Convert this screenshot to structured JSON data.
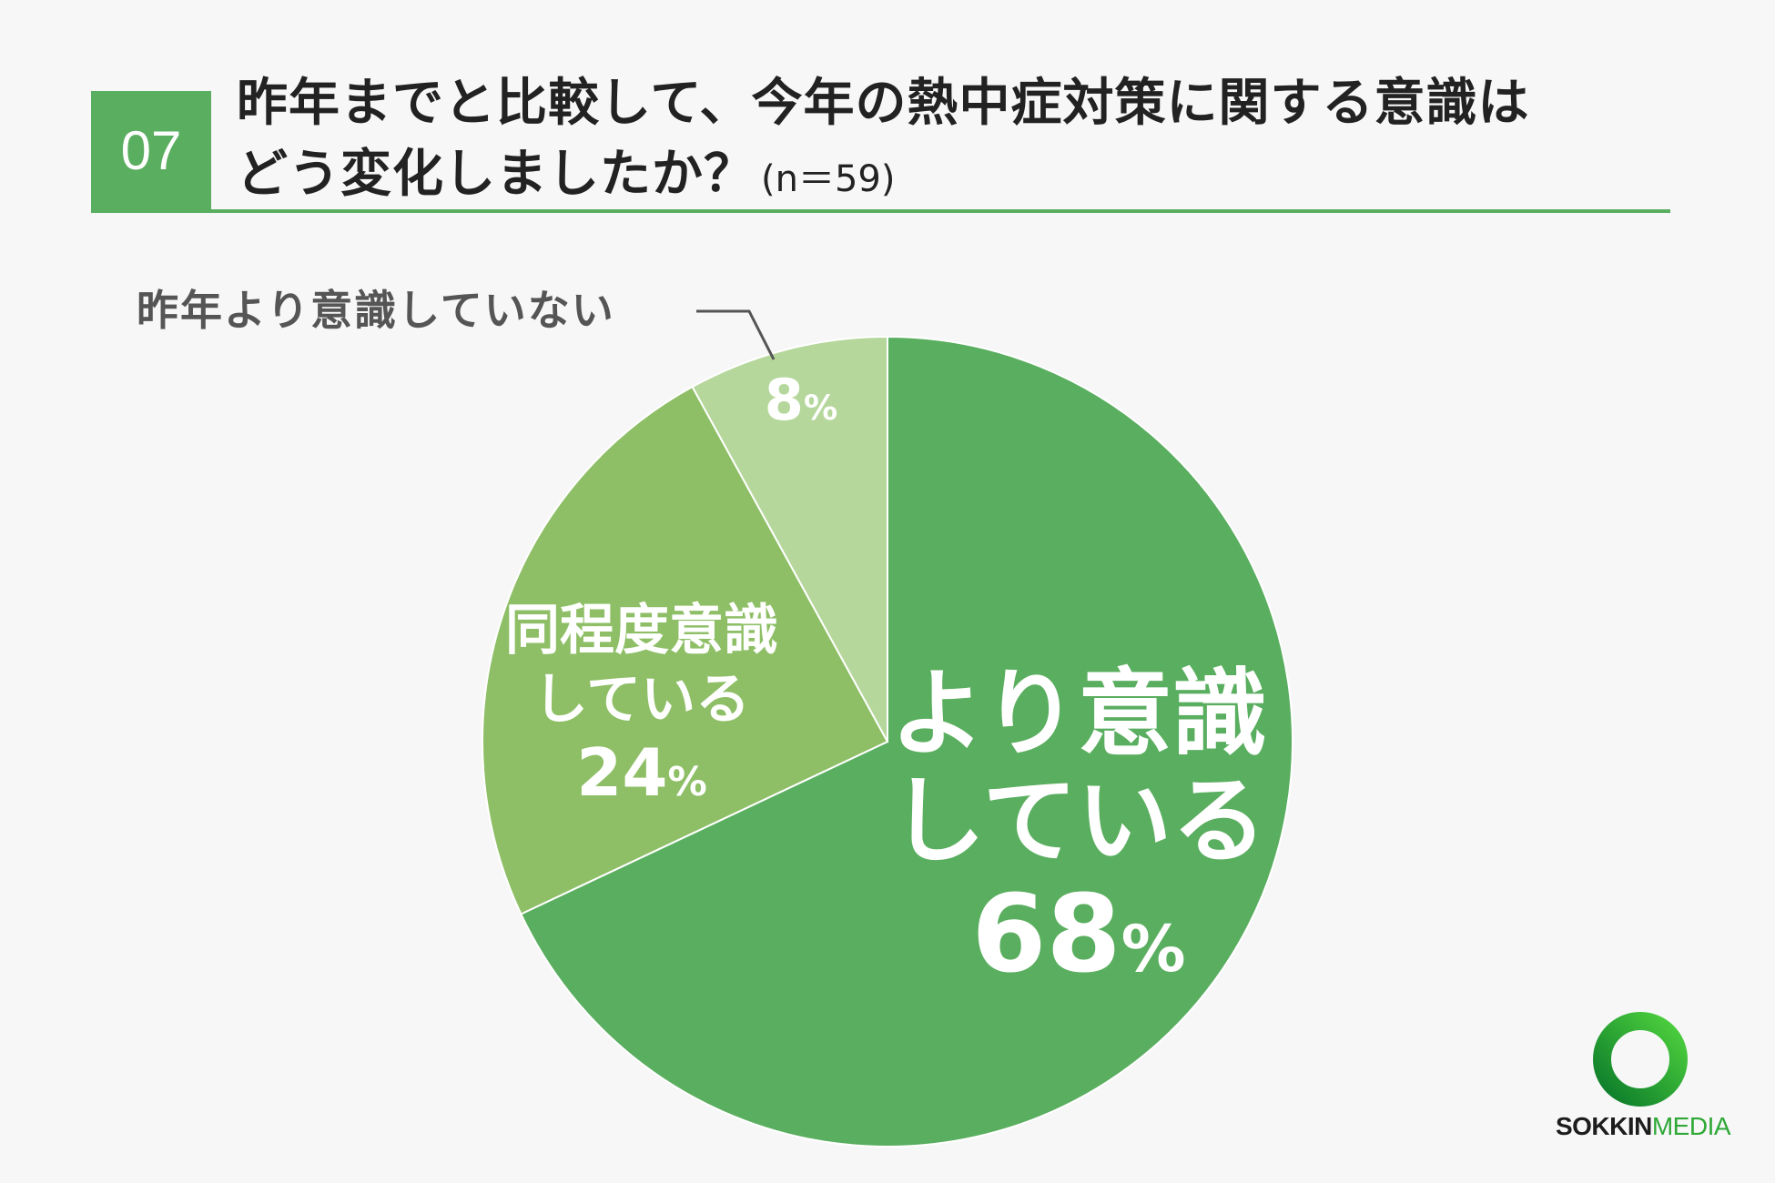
{
  "header": {
    "question_number": "07",
    "title_line1": "昨年までと比較して、今年の熱中症対策に関する意識は",
    "title_line2": "どう変化しましたか？",
    "sample_size": "(n＝59)"
  },
  "chart_data": {
    "type": "pie",
    "title": "",
    "start_angle_deg": 0,
    "direction": "clockwise",
    "slices": [
      {
        "label_line1": "より意識",
        "label_line2": "している",
        "value": 68,
        "value_label": "68",
        "color": "#5aae5f"
      },
      {
        "label_line1": "同程度意識",
        "label_line2": "している",
        "value": 24,
        "value_label": "24",
        "color": "#8ebf66"
      },
      {
        "label": "昨年より意識していない",
        "value": 8,
        "value_label": "8",
        "color": "#b5d79c"
      }
    ],
    "percent_sign": "%",
    "separator_color": "#ffffff",
    "leader_color": "#555555"
  },
  "logo": {
    "text_bold": "SOKKIN",
    "text_light": "MEDIA",
    "ring_color_dark": "#0b7a2a",
    "ring_color_light": "#4fd23e"
  }
}
